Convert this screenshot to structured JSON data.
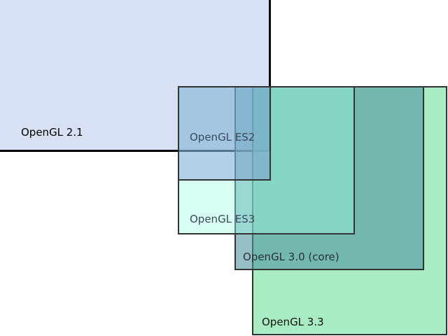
{
  "diagram": {
    "regions": [
      {
        "id": "gl21",
        "label": "OpenGL 2.1",
        "fill": "#cddaf0",
        "border": "#000000"
      },
      {
        "id": "es2",
        "label": "OpenGL ES2",
        "fill": "#788cd2",
        "border": "#333333"
      },
      {
        "id": "es3",
        "label": "OpenGL ES3",
        "fill": "#a0ffe6",
        "border": "#333333"
      },
      {
        "id": "gl30",
        "label": "OpenGL 3.0 (core)",
        "fill": "#5096a0",
        "border": "#333333"
      },
      {
        "id": "gl33",
        "label": "OpenGL 3.3",
        "fill": "#8ce6af",
        "border": "#333333"
      }
    ]
  }
}
